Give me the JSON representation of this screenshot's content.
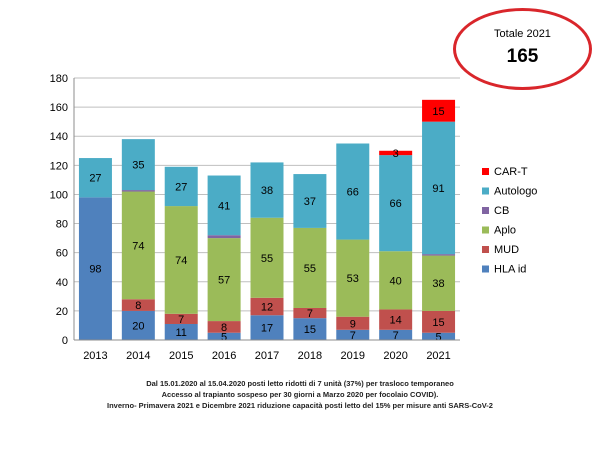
{
  "callout": {
    "label": "Totale 2021",
    "value": "165"
  },
  "notes": [
    "Dal 15.01.2020 al 15.04.2020 posti letto ridotti di 7 unità (37%) per trasloco temporaneo",
    "Accesso al trapianto sospeso per 30 giorni a Marzo 2020 per focolaio COVID).",
    "Inverno- Primavera 2021 e Dicembre 2021 riduzione capacità posti letto del 15% per misure anti SARS-CoV-2"
  ],
  "chart_data": {
    "type": "bar",
    "stacked": true,
    "categories": [
      "2013",
      "2014",
      "2015",
      "2016",
      "2017",
      "2018",
      "2019",
      "2020",
      "2021"
    ],
    "ylim": [
      0,
      180
    ],
    "yticks": [
      0,
      20,
      40,
      60,
      80,
      100,
      120,
      140,
      160,
      180
    ],
    "grid": true,
    "legend_position": "right",
    "series": [
      {
        "name": "HLA id",
        "color": "#4f81bd",
        "values": [
          98,
          20,
          11,
          5,
          17,
          15,
          7,
          7,
          5
        ],
        "labels": [
          "98",
          "20",
          "11",
          "5",
          "17",
          "15",
          "7",
          "7",
          "5"
        ]
      },
      {
        "name": "MUD",
        "color": "#c0504d",
        "values": [
          0,
          8,
          7,
          8,
          12,
          7,
          9,
          14,
          15
        ],
        "labels": [
          "",
          "8",
          "7",
          "8",
          "12",
          "7",
          "9",
          "14",
          "15"
        ]
      },
      {
        "name": "Aplo",
        "color": "#9bbb59",
        "values": [
          0,
          74,
          74,
          57,
          55,
          55,
          53,
          40,
          38
        ],
        "labels": [
          "",
          "74",
          "74",
          "57",
          "55",
          "55",
          "53",
          "40",
          "38"
        ]
      },
      {
        "name": "CB",
        "color": "#8064a2",
        "values": [
          0,
          1,
          0,
          2,
          0,
          0,
          0,
          0,
          1
        ],
        "labels": [
          "",
          "",
          "",
          "",
          "",
          "",
          "",
          "",
          ""
        ]
      },
      {
        "name": "Autologo",
        "color": "#4bacc6",
        "values": [
          27,
          35,
          27,
          41,
          38,
          37,
          66,
          66,
          91
        ],
        "labels": [
          "27",
          "35",
          "27",
          "41",
          "38",
          "37",
          "66",
          "66",
          "91"
        ]
      },
      {
        "name": "CAR-T",
        "color": "#ff0000",
        "values": [
          0,
          0,
          0,
          0,
          0,
          0,
          0,
          3,
          15
        ],
        "labels": [
          "",
          "",
          "",
          "",
          "",
          "",
          "",
          "3",
          "15"
        ]
      }
    ]
  }
}
